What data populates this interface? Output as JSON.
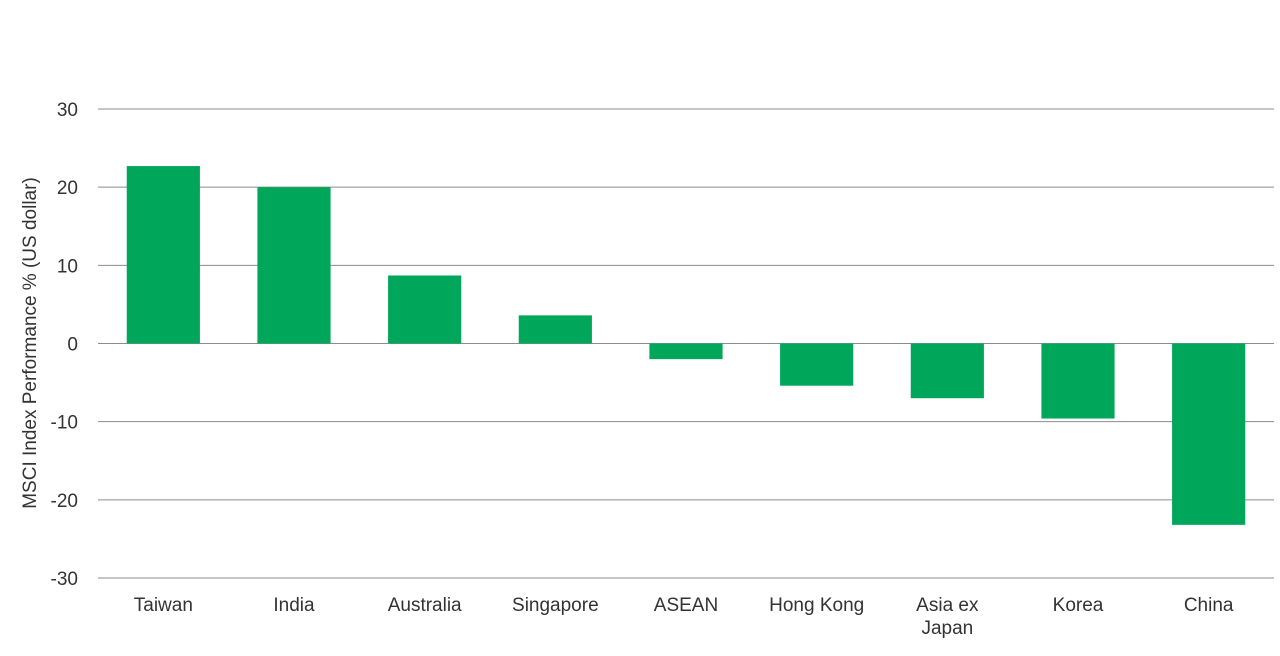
{
  "chart_data": {
    "type": "bar",
    "title": "",
    "xlabel": "",
    "ylabel": "MSCI Index Performance % (US dollar)",
    "ylim": [
      -30,
      30
    ],
    "yticks": [
      30,
      20,
      10,
      0,
      -10,
      -20,
      -30
    ],
    "yticklabels": [
      "30",
      "20",
      "10",
      "0",
      "-10",
      "-20",
      "-30"
    ],
    "grid": true,
    "legend": "none",
    "categories": [
      [
        "Taiwan"
      ],
      [
        "India"
      ],
      [
        "Australia"
      ],
      [
        "Singapore"
      ],
      [
        "ASEAN"
      ],
      [
        "Hong Kong"
      ],
      [
        "Asia ex",
        "Japan"
      ],
      [
        "Korea"
      ],
      [
        "China"
      ]
    ],
    "values": [
      22.7,
      20.0,
      8.7,
      3.6,
      -2.0,
      -5.4,
      -7.0,
      -9.6,
      -23.2
    ],
    "bar_color": "#00a65a",
    "grid_color": "#8c8c8c"
  }
}
